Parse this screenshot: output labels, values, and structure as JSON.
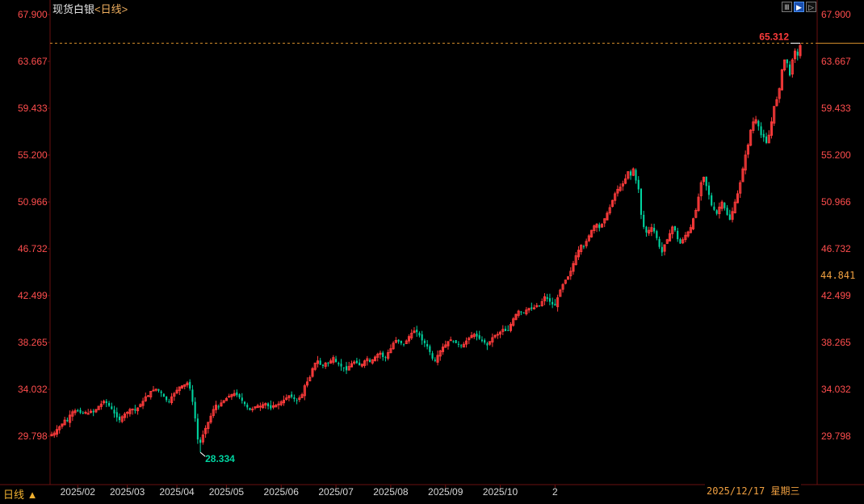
{
  "header": {
    "title": "现货白银",
    "period": "<日线>"
  },
  "toolbar": {
    "icons": [
      "grid-icon",
      "play-icon",
      "forward-icon"
    ],
    "glyphs": [
      "Ⅲ",
      "▶",
      "▷"
    ]
  },
  "footer": {
    "period_label": "日线 ▲",
    "cursor_date": "2025/12/17 星期三"
  },
  "side_value": "44.841",
  "colors": {
    "up": "#ff3b3b",
    "down": "#00d4a0",
    "axis_text": "#ff4d4d",
    "grid_line": "#6a1010",
    "dotted_line": "#d08a2a",
    "background": "#000000"
  },
  "chart_data": {
    "type": "candlestick",
    "title": "现货白银<日线>",
    "y_ticks": [
      "67.900",
      "63.667",
      "59.433",
      "55.200",
      "50.966",
      "46.732",
      "42.499",
      "38.265",
      "34.032",
      "29.798"
    ],
    "ylim": [
      29.798,
      67.9
    ],
    "x_ticks": [
      "2025/02",
      "2025/03",
      "2025/04",
      "2025/05",
      "2025/06",
      "2025/07",
      "2025/08",
      "2025/09",
      "2025/10",
      "2"
    ],
    "annotations": [
      {
        "label": "65.312",
        "kind": "high",
        "value": 65.312
      },
      {
        "label": "28.334",
        "kind": "low",
        "value": 28.334
      }
    ],
    "reference_line": 65.312,
    "x_tick_index": [
      10,
      29,
      48,
      67,
      88,
      109,
      130,
      151,
      172,
      193
    ],
    "series_close": [
      29.95,
      30.08,
      30.4,
      30.65,
      30.9,
      31.25,
      31.15,
      31.7,
      32.0,
      32.1,
      32.05,
      31.9,
      31.85,
      31.95,
      31.85,
      32.05,
      31.95,
      32.2,
      32.5,
      32.7,
      32.95,
      32.8,
      32.55,
      32.25,
      31.85,
      31.5,
      31.25,
      31.55,
      31.8,
      31.95,
      32.2,
      32.25,
      32.1,
      32.35,
      32.65,
      32.95,
      33.35,
      33.45,
      33.85,
      33.95,
      34.05,
      33.9,
      33.7,
      33.35,
      33.05,
      32.95,
      33.35,
      33.65,
      33.95,
      34.25,
      34.35,
      34.45,
      34.6,
      34.1,
      32.9,
      31.4,
      29.5,
      29.2,
      29.9,
      30.5,
      31.05,
      31.6,
      32.2,
      32.6,
      32.4,
      32.8,
      33.0,
      33.2,
      33.4,
      33.55,
      33.65,
      33.5,
      33.3,
      33.0,
      32.7,
      32.4,
      32.15,
      32.25,
      32.45,
      32.55,
      32.5,
      32.65,
      32.75,
      32.5,
      32.3,
      32.55,
      32.6,
      32.7,
      32.9,
      33.05,
      33.25,
      33.45,
      33.35,
      33.15,
      33.05,
      33.25,
      33.55,
      34.35,
      34.7,
      35.1,
      35.9,
      36.4,
      36.6,
      36.25,
      36.15,
      36.4,
      36.35,
      36.6,
      36.9,
      36.5,
      36.3,
      36.1,
      36.0,
      35.75,
      36.1,
      36.35,
      36.5,
      36.4,
      36.2,
      36.3,
      36.6,
      36.8,
      36.5,
      36.7,
      36.95,
      37.2,
      37.3,
      36.95,
      36.9,
      37.35,
      37.7,
      38.2,
      38.45,
      38.35,
      38.2,
      38.1,
      38.4,
      38.8,
      39.1,
      39.3,
      39.2,
      38.9,
      38.45,
      38.2,
      37.9,
      37.4,
      36.8,
      36.6,
      37.1,
      37.5,
      37.85,
      38.05,
      38.35,
      38.5,
      38.35,
      38.2,
      38.1,
      37.95,
      38.1,
      38.4,
      38.65,
      38.9,
      39.0,
      38.8,
      38.6,
      38.4,
      38.25,
      38.0,
      38.35,
      38.7,
      38.9,
      39.0,
      39.2,
      39.45,
      39.3,
      39.35,
      39.9,
      40.4,
      40.8,
      41.1,
      41.05,
      40.95,
      41.2,
      41.35,
      41.3,
      41.4,
      41.6,
      41.55,
      41.95,
      42.4,
      42.2,
      41.95,
      41.7,
      41.6,
      42.3,
      43.0,
      43.5,
      43.9,
      44.2,
      44.7,
      45.4,
      46.1,
      46.6,
      47.05,
      46.9,
      47.4,
      47.9,
      48.4,
      48.8,
      48.95,
      48.6,
      48.95,
      49.45,
      49.95,
      50.45,
      51.1,
      51.7,
      52.1,
      52.3,
      52.6,
      53.05,
      53.7,
      53.35,
      53.95,
      52.9,
      52.1,
      49.8,
      48.7,
      48.2,
      48.4,
      48.65,
      48.3,
      47.7,
      46.9,
      46.4,
      47.1,
      47.55,
      48.1,
      48.7,
      48.4,
      47.6,
      47.2,
      47.55,
      47.95,
      48.25,
      48.65,
      49.45,
      50.2,
      51.4,
      52.7,
      53.2,
      52.4,
      51.6,
      50.65,
      50.25,
      49.9,
      50.5,
      50.95,
      50.4,
      49.8,
      49.35,
      50.1,
      50.95,
      51.7,
      52.7,
      53.95,
      55.2,
      56.1,
      57.45,
      58.2,
      58.4,
      57.8,
      57.0,
      56.8,
      56.3,
      57.0,
      58.2,
      59.6,
      60.2,
      61.2,
      62.9,
      63.8,
      63.5,
      62.4,
      63.8,
      64.6,
      64.2,
      65.1
    ]
  }
}
